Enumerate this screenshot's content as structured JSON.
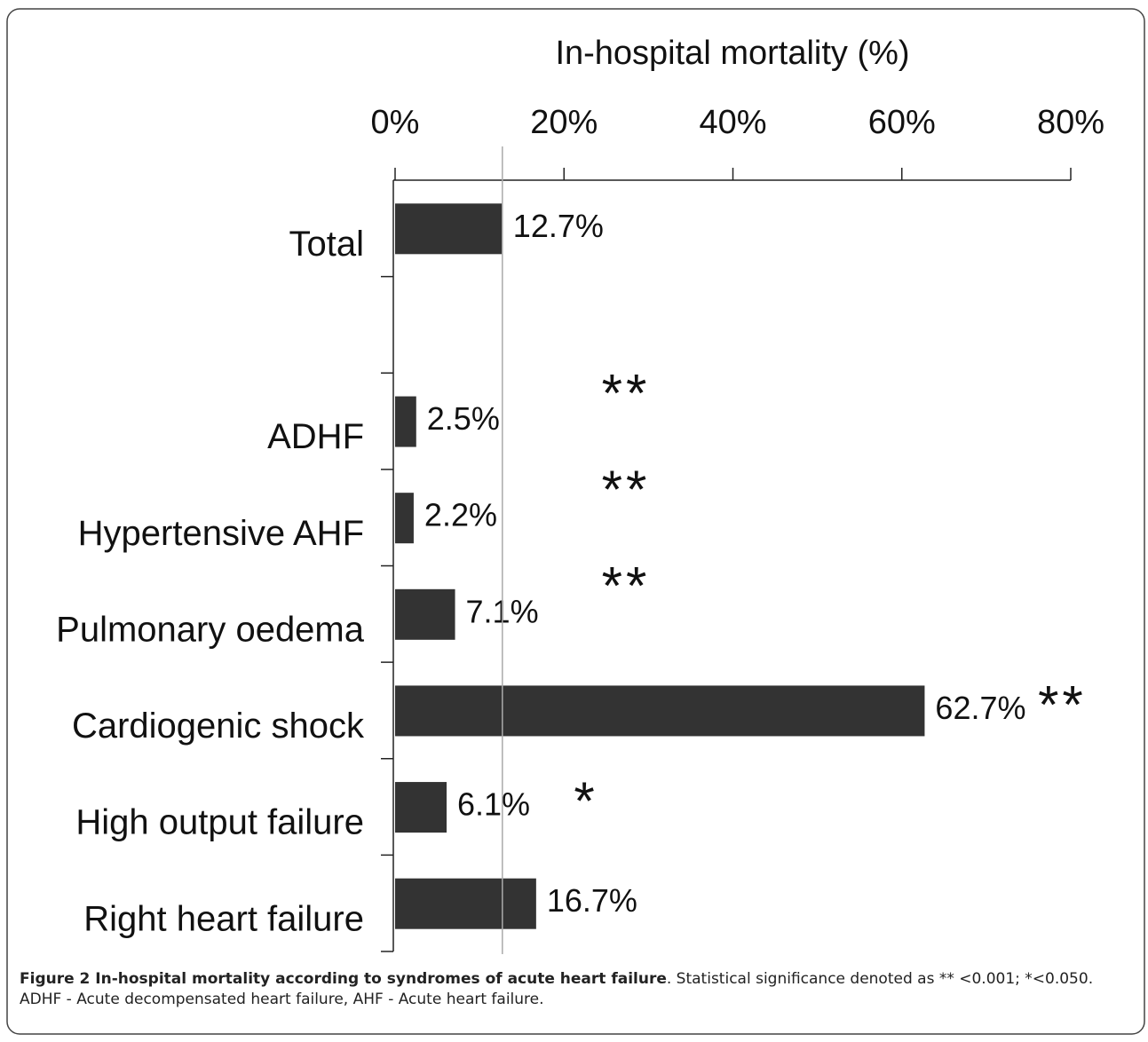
{
  "chart_data": {
    "type": "hbar",
    "x_label": "In-hospital mortality (%)",
    "categories": [
      "Total",
      null,
      "ADHF",
      "Hypertensive AHF",
      "Pulmonary oedema",
      "Cardiogenic shock",
      "High output failure",
      "Right heart failure"
    ],
    "values": [
      12.7,
      null,
      2.5,
      2.2,
      7.1,
      62.7,
      6.1,
      16.7
    ],
    "value_labels": [
      "12.7%",
      null,
      "2.5%",
      "2.2%",
      "7.1%",
      "62.7%",
      "6.1%",
      "16.7%"
    ],
    "annotations": [
      null,
      null,
      "**",
      "**",
      "**",
      "**",
      "*",
      null
    ],
    "color": "#333333",
    "reference_line": {
      "value": 12.7,
      "color": "#aaaaaa"
    },
    "xlim": [
      0,
      80
    ],
    "xticks": [
      {
        "value": 0,
        "label": "0%"
      },
      {
        "value": 20,
        "label": "20%"
      },
      {
        "value": 40,
        "label": "40%"
      },
      {
        "value": 60,
        "label": "60%"
      },
      {
        "value": 80,
        "label": "80%"
      }
    ]
  },
  "caption": {
    "title": "Figure 2 In-hospital mortality according to syndromes of acute heart failure",
    "text": ". Statistical significance denoted as ** <0.001; *<0.050. ADHF - Acute decompensated heart failure, AHF - Acute heart failure."
  }
}
